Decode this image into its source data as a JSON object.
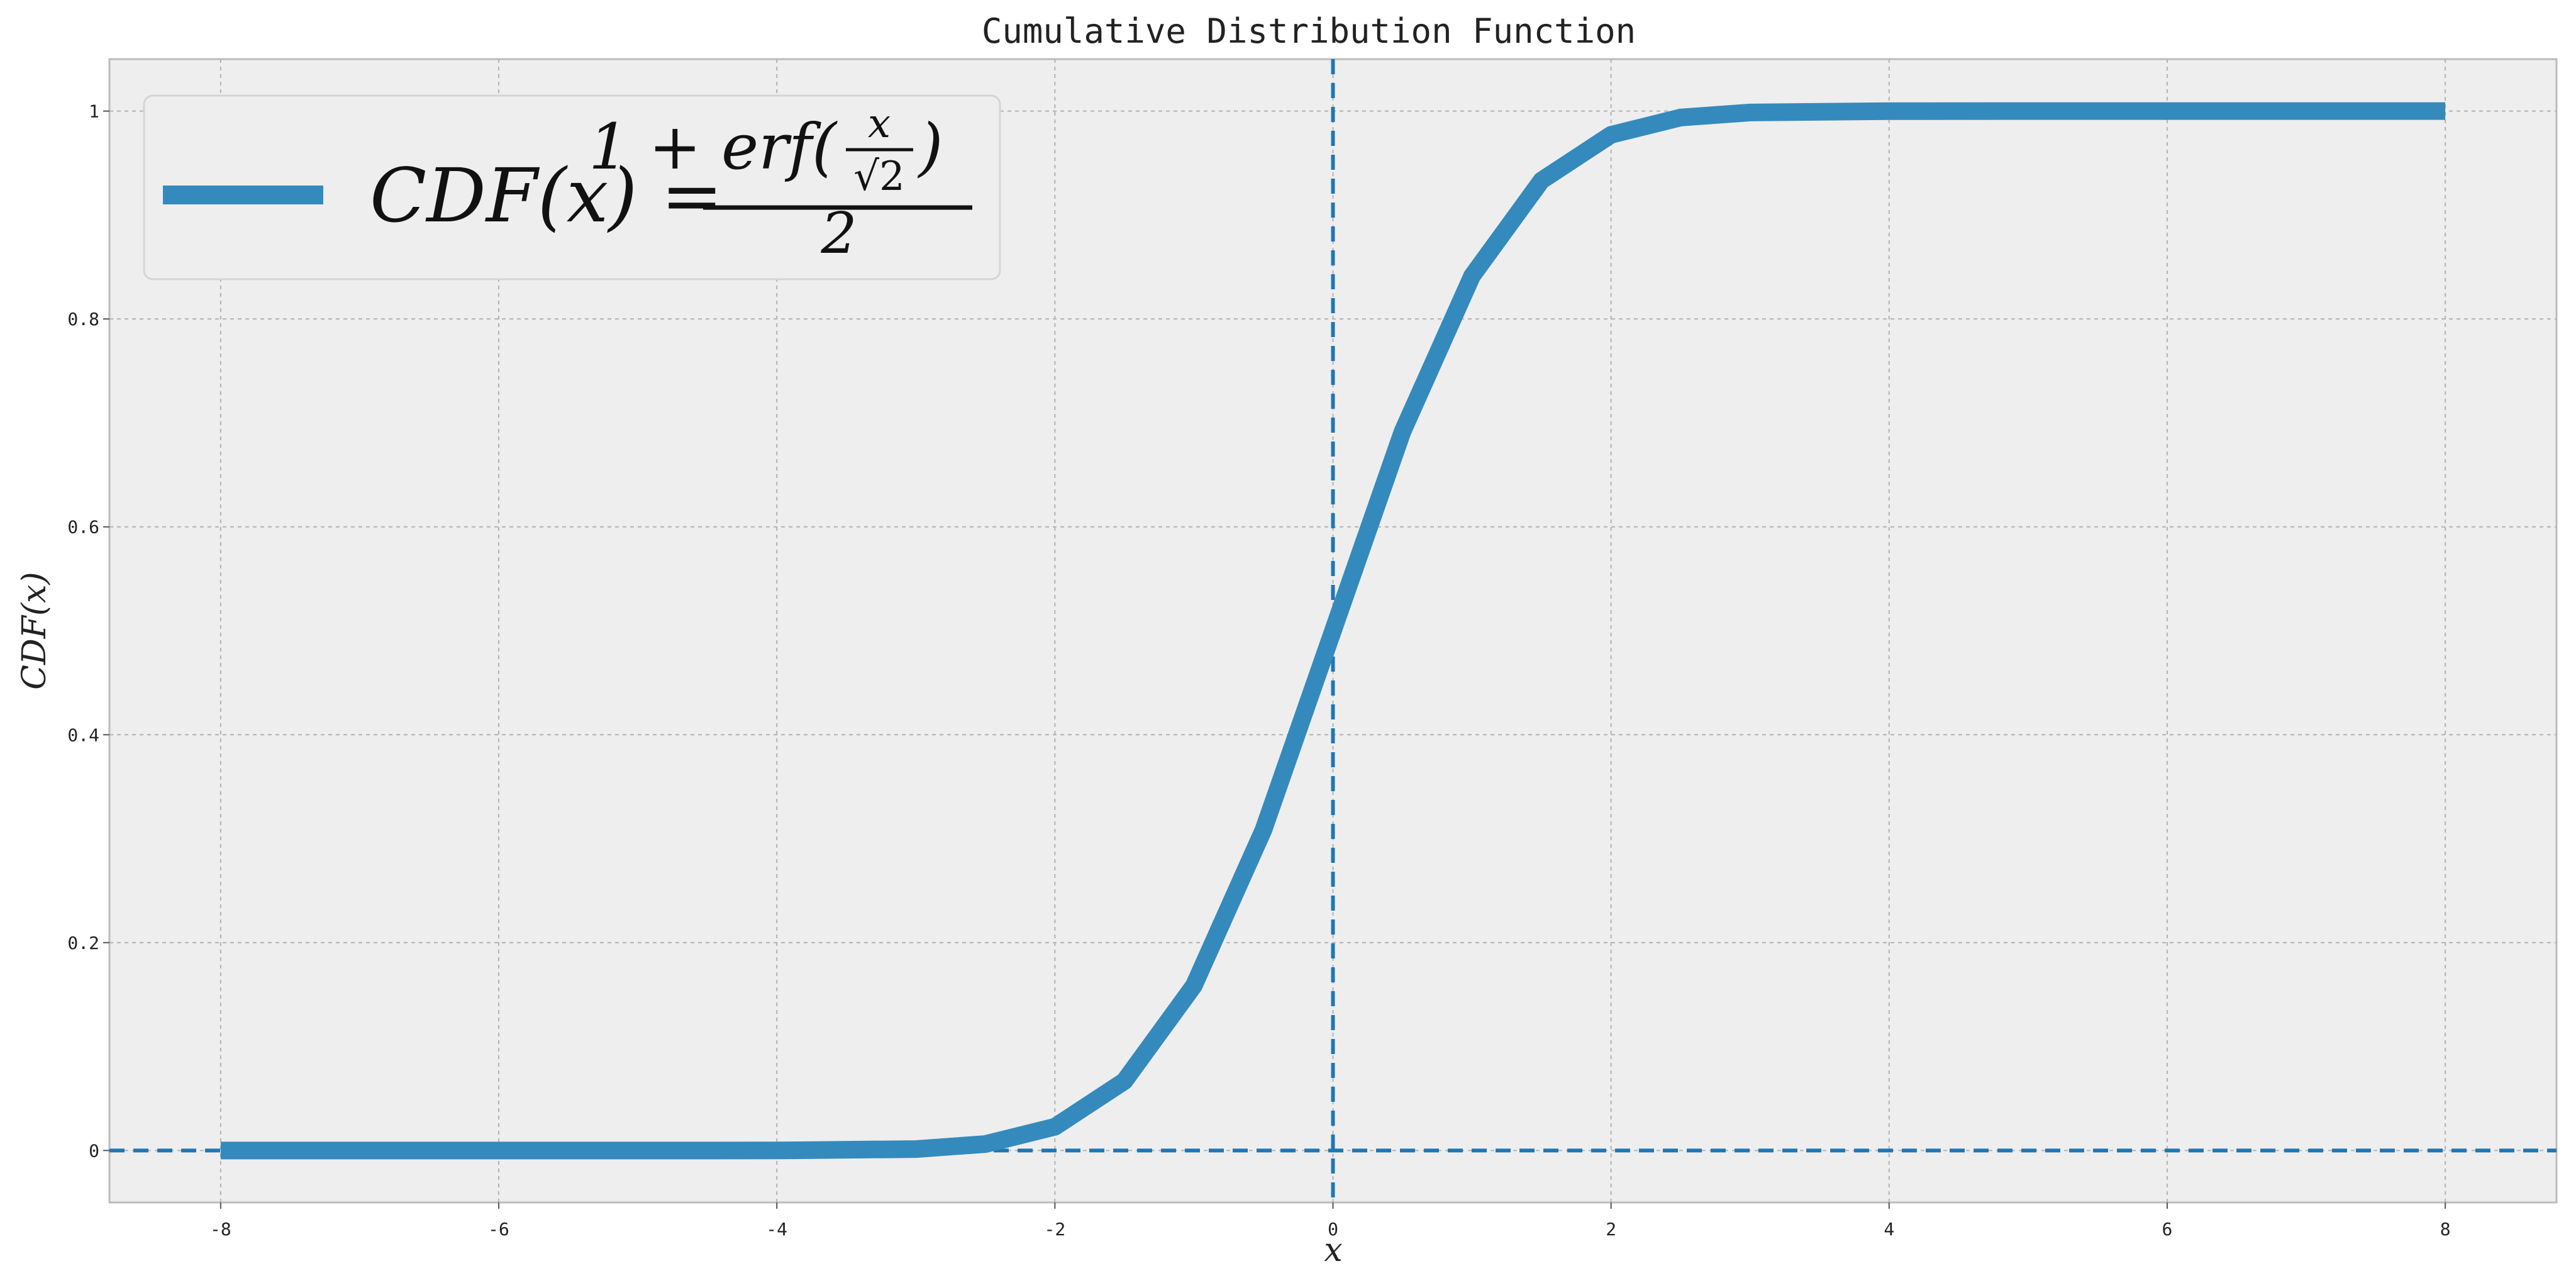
{
  "chart_data": {
    "type": "line",
    "title": "Cumulative Distribution Function",
    "xlabel": "x",
    "ylabel": "CDF(x)",
    "xlim": [
      -8.8,
      8.8
    ],
    "ylim": [
      -0.05,
      1.05
    ],
    "x_ticks": [
      -8,
      -6,
      -4,
      -2,
      0,
      2,
      4,
      6,
      8
    ],
    "y_ticks": [
      0,
      0.2,
      0.4,
      0.6,
      0.8,
      1
    ],
    "x_tick_labels": [
      "-8",
      "-6",
      "-4",
      "-2",
      "0",
      "2",
      "4",
      "6",
      "8"
    ],
    "y_tick_labels": [
      "0",
      "0.2",
      "0.4",
      "0.6",
      "0.8",
      "1"
    ],
    "grid": true,
    "legend_position": "top-left",
    "legend": {
      "lhs": "CDF(x) =",
      "numerator_prefix": "1 + erf(",
      "numerator_frac_top": "x",
      "numerator_frac_bottom": "√2",
      "numerator_suffix": ")",
      "denominator": "2"
    },
    "series": [
      {
        "name": "CDF(x) = (1 + erf(x/√2)) / 2",
        "x": [
          -8,
          -6,
          -4,
          -3,
          -2.5,
          -2,
          -1.5,
          -1,
          -0.5,
          0,
          0.5,
          1,
          1.5,
          2,
          2.5,
          3,
          4,
          6,
          8
        ],
        "values": [
          0,
          0,
          3e-05,
          0.00135,
          0.0062,
          0.0228,
          0.0668,
          0.1587,
          0.3085,
          0.5,
          0.6915,
          0.8413,
          0.9332,
          0.9772,
          0.9938,
          0.99865,
          0.99997,
          1,
          1
        ]
      }
    ],
    "reference_lines": {
      "vertical_x": 0,
      "horizontal_y": 0
    },
    "colors": {
      "line": "#348abd",
      "reference": "#1f77b4",
      "axes_bg": "#eeeeee",
      "grid": "#b2b2b2",
      "spine": "#bcbcbc"
    }
  }
}
